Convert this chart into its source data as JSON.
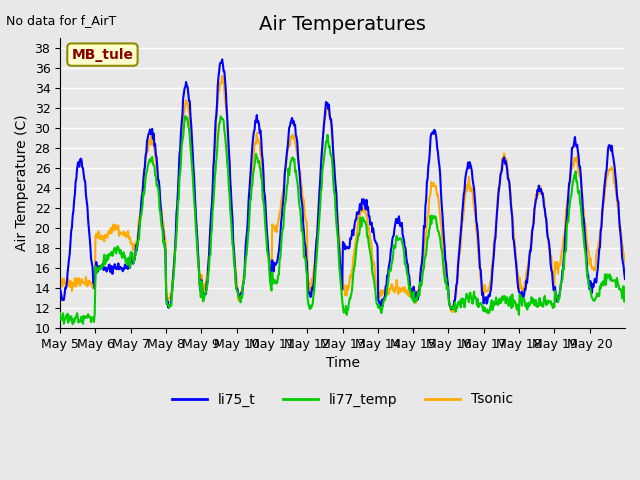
{
  "title": "Air Temperatures",
  "ylabel": "Air Temperature (C)",
  "xlabel": "Time",
  "no_data_text": "No data for f_AirT",
  "site_label": "MB_tule",
  "ylim": [
    10,
    39
  ],
  "yticks": [
    10,
    12,
    14,
    16,
    18,
    20,
    22,
    24,
    26,
    28,
    30,
    32,
    34,
    36,
    38
  ],
  "xtick_labels": [
    "May 5",
    "May 6",
    "May 7",
    "May 8",
    "May 9",
    "May 10",
    "May 11",
    "May 12",
    "May 13",
    "May 14",
    "May 15",
    "May 16",
    "May 17",
    "May 18",
    "May 19",
    "May 20"
  ],
  "line_colors": {
    "li75_t": "#0000ff",
    "li77_temp": "#00cc00",
    "Tsonic": "#ffaa00"
  },
  "line_widths": {
    "li75_t": 1.5,
    "li77_temp": 1.5,
    "Tsonic": 1.5
  },
  "plot_bg_color": "#e8e8e8",
  "grid_color": "#ffffff",
  "title_fontsize": 14,
  "label_fontsize": 10,
  "tick_fontsize": 9,
  "legend_fontsize": 10,
  "daily_maxes_blue": [
    27,
    16,
    30,
    34.5,
    37,
    31,
    31,
    32.5,
    22.5,
    21,
    30,
    26.5,
    27,
    24,
    28.5,
    28
  ],
  "daily_mins_blue": [
    13,
    16,
    17,
    12,
    13,
    13,
    16,
    13,
    18,
    12.5,
    13,
    12,
    12.5,
    13,
    13,
    14
  ],
  "daily_maxes_green": [
    11,
    18,
    27,
    31,
    31,
    27,
    27,
    29,
    21,
    19,
    21,
    13,
    13,
    12.5,
    25,
    15
  ],
  "daily_mins_green": [
    11,
    16,
    17,
    12,
    13,
    13,
    14.5,
    12,
    11.5,
    12,
    13,
    12,
    12,
    12.5,
    13,
    13
  ],
  "daily_maxes_orange": [
    14.5,
    20,
    29,
    32.5,
    35,
    29,
    29,
    32,
    22,
    14,
    24.5,
    24.5,
    27,
    24,
    27,
    26
  ],
  "daily_mins_orange": [
    14.5,
    19,
    18,
    13,
    14,
    13,
    20,
    14,
    13.5,
    13.5,
    13,
    12,
    13.5,
    14,
    16,
    16
  ]
}
